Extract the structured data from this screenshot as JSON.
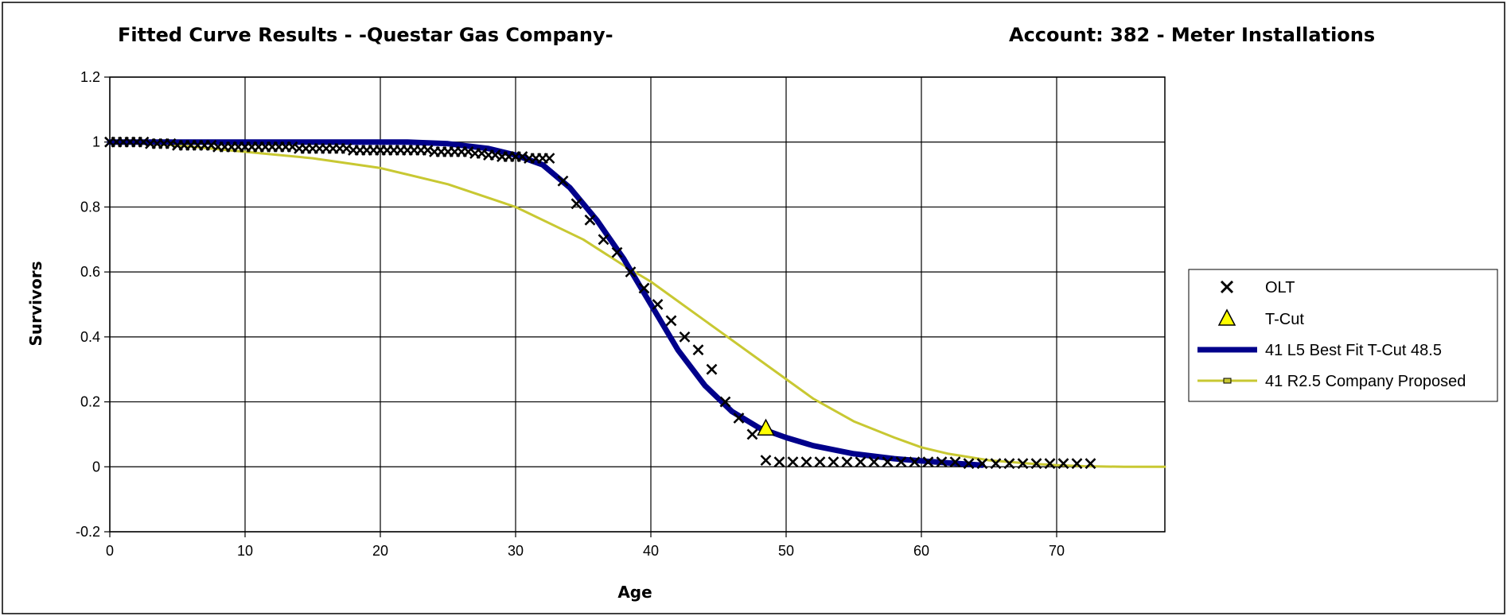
{
  "chart_data": {
    "type": "scatter",
    "title": "Fitted Curve Results - -Questar Gas Company-",
    "account": "Account:  382 - Meter Installations",
    "xlabel": "Age",
    "ylabel": "Survivors",
    "xlim": [
      0,
      78
    ],
    "ylim": [
      -0.2,
      1.2
    ],
    "x_ticks": [
      0,
      10,
      20,
      30,
      40,
      50,
      60,
      70
    ],
    "y_ticks": [
      -0.2,
      0,
      0.2,
      0.4,
      0.6,
      0.8,
      1,
      1.2
    ],
    "y_tick_labels": [
      "-0.2",
      "0",
      "0.2",
      "0.4",
      "0.6",
      "0.8",
      "1",
      "1.2"
    ],
    "grid": true,
    "legend_position": "right",
    "series": [
      {
        "name": "OLT",
        "kind": "scatter",
        "marker": "x",
        "color": "#000000",
        "x": [
          0,
          0.5,
          1,
          1.5,
          2,
          2.5,
          3,
          3.5,
          4,
          4.5,
          5,
          5.5,
          6,
          6.5,
          7,
          7.5,
          8,
          8.5,
          9,
          9.5,
          10,
          10.5,
          11,
          11.5,
          12,
          12.5,
          13,
          13.5,
          14,
          14.5,
          15,
          15.5,
          16,
          16.5,
          17,
          17.5,
          18,
          18.5,
          19,
          19.5,
          20,
          20.5,
          21,
          21.5,
          22,
          22.5,
          23,
          23.5,
          24,
          24.5,
          25,
          25.5,
          26,
          26.5,
          27,
          27.5,
          28,
          28.5,
          29,
          29.5,
          30,
          30.5,
          31,
          31.5,
          32,
          32.5,
          33.5,
          34.5,
          35.5,
          36.5,
          37.5,
          38.5,
          39.5,
          40.5,
          41.5,
          42.5,
          43.5,
          44.5,
          45.5,
          46.5,
          47.5,
          48.5,
          49.5,
          50.5,
          51.5,
          52.5,
          53.5,
          54.5,
          55.5,
          56.5,
          57.5,
          58.5,
          59.5,
          60.5,
          61.5,
          62.5,
          63.5,
          64.5,
          65.5,
          66.5,
          67.5,
          68.5,
          69.5,
          70.5,
          71.5,
          72.5
        ],
        "y": [
          1,
          1,
          1,
          1,
          1,
          1,
          0.995,
          0.995,
          0.995,
          0.995,
          0.99,
          0.99,
          0.99,
          0.99,
          0.99,
          0.99,
          0.985,
          0.985,
          0.985,
          0.985,
          0.985,
          0.985,
          0.985,
          0.985,
          0.985,
          0.985,
          0.985,
          0.985,
          0.98,
          0.98,
          0.98,
          0.98,
          0.98,
          0.98,
          0.98,
          0.98,
          0.975,
          0.975,
          0.975,
          0.975,
          0.975,
          0.975,
          0.975,
          0.975,
          0.975,
          0.975,
          0.975,
          0.975,
          0.97,
          0.97,
          0.97,
          0.97,
          0.97,
          0.97,
          0.965,
          0.965,
          0.96,
          0.96,
          0.955,
          0.955,
          0.955,
          0.955,
          0.95,
          0.95,
          0.95,
          0.95,
          0.88,
          0.81,
          0.76,
          0.7,
          0.66,
          0.6,
          0.55,
          0.5,
          0.45,
          0.4,
          0.36,
          0.3,
          0.2,
          0.15,
          0.1,
          0.02,
          0.015,
          0.015,
          0.015,
          0.015,
          0.015,
          0.015,
          0.015,
          0.015,
          0.015,
          0.015,
          0.015,
          0.015,
          0.015,
          0.015,
          0.01,
          0.01,
          0.01,
          0.01,
          0.01,
          0.01,
          0.01,
          0.01,
          0.01,
          0.01
        ]
      },
      {
        "name": "T-Cut",
        "kind": "scatter",
        "marker": "triangle",
        "color": "#ffff00",
        "x": [
          48.5
        ],
        "y": [
          0.12
        ]
      },
      {
        "name": "41 L5 Best Fit T-Cut 48.5",
        "kind": "line",
        "color": "#00008b",
        "x": [
          0,
          5,
          10,
          15,
          20,
          22,
          25,
          28,
          30,
          32,
          34,
          36,
          38,
          40,
          41,
          42,
          44,
          46,
          48,
          50,
          52,
          55,
          58,
          60,
          62,
          64.5
        ],
        "y": [
          1,
          1,
          1,
          1,
          1,
          1,
          0.995,
          0.98,
          0.96,
          0.93,
          0.86,
          0.76,
          0.64,
          0.5,
          0.43,
          0.36,
          0.25,
          0.17,
          0.12,
          0.09,
          0.065,
          0.04,
          0.025,
          0.018,
          0.012,
          0.005
        ]
      },
      {
        "name": "41 R2.5 Company Proposed",
        "kind": "line",
        "color": "#c8c832",
        "x": [
          0,
          5,
          10,
          15,
          20,
          25,
          30,
          35,
          38,
          40,
          42,
          45,
          48,
          50,
          52,
          55,
          58,
          60,
          62,
          65,
          68,
          70,
          72,
          75,
          78
        ],
        "y": [
          1,
          0.99,
          0.97,
          0.95,
          0.92,
          0.87,
          0.8,
          0.7,
          0.62,
          0.57,
          0.51,
          0.42,
          0.33,
          0.27,
          0.21,
          0.14,
          0.09,
          0.06,
          0.04,
          0.02,
          0.01,
          0.005,
          0.002,
          0,
          0
        ]
      }
    ]
  }
}
